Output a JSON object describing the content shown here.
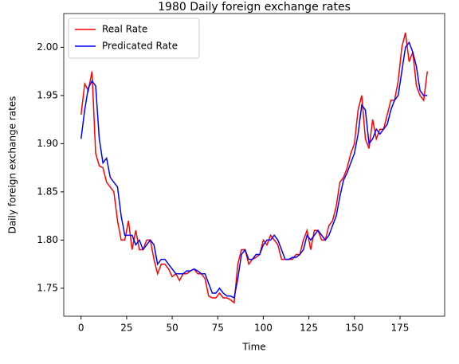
{
  "chart_data": {
    "type": "line",
    "title": "1980 Daily foreign exchange rates",
    "x_label": "Time",
    "y_label": "Daily foreign exchange rates",
    "x": [
      0,
      2,
      4,
      6,
      8,
      10,
      12,
      14,
      16,
      18,
      20,
      22,
      24,
      26,
      28,
      30,
      32,
      34,
      36,
      38,
      40,
      42,
      44,
      46,
      48,
      50,
      52,
      54,
      56,
      58,
      60,
      62,
      64,
      66,
      68,
      70,
      72,
      74,
      76,
      78,
      80,
      82,
      84,
      86,
      88,
      90,
      92,
      94,
      96,
      98,
      100,
      102,
      104,
      106,
      108,
      110,
      112,
      114,
      116,
      118,
      120,
      122,
      124,
      126,
      128,
      130,
      132,
      134,
      136,
      138,
      140,
      142,
      144,
      146,
      148,
      150,
      152,
      154,
      156,
      158,
      160,
      162,
      164,
      166,
      168,
      170,
      172,
      174,
      176,
      178,
      180,
      182,
      184,
      186,
      188,
      190
    ],
    "series": [
      {
        "name": "Real Rate",
        "color": "#ff0000",
        "values": [
          1.93,
          1.962,
          1.955,
          1.975,
          1.89,
          1.877,
          1.875,
          1.86,
          1.855,
          1.85,
          1.82,
          1.8,
          1.8,
          1.82,
          1.79,
          1.81,
          1.79,
          1.79,
          1.8,
          1.8,
          1.78,
          1.765,
          1.775,
          1.775,
          1.77,
          1.762,
          1.765,
          1.758,
          1.765,
          1.765,
          1.768,
          1.77,
          1.765,
          1.765,
          1.76,
          1.742,
          1.74,
          1.74,
          1.745,
          1.74,
          1.74,
          1.738,
          1.735,
          1.775,
          1.79,
          1.79,
          1.775,
          1.78,
          1.782,
          1.785,
          1.8,
          1.795,
          1.805,
          1.8,
          1.795,
          1.78,
          1.78,
          1.78,
          1.78,
          1.785,
          1.785,
          1.8,
          1.81,
          1.79,
          1.81,
          1.81,
          1.8,
          1.8,
          1.815,
          1.82,
          1.835,
          1.86,
          1.865,
          1.875,
          1.89,
          1.9,
          1.935,
          1.95,
          1.905,
          1.895,
          1.925,
          1.905,
          1.915,
          1.915,
          1.93,
          1.945,
          1.945,
          1.965,
          2.0,
          2.015,
          1.985,
          1.995,
          1.96,
          1.95,
          1.945,
          1.975
        ]
      },
      {
        "name": "Predicated Rate",
        "color": "#0000ff",
        "values": [
          1.905,
          1.935,
          1.958,
          1.965,
          1.96,
          1.905,
          1.88,
          1.885,
          1.865,
          1.86,
          1.855,
          1.825,
          1.805,
          1.805,
          1.805,
          1.795,
          1.8,
          1.79,
          1.795,
          1.8,
          1.795,
          1.775,
          1.78,
          1.78,
          1.775,
          1.77,
          1.765,
          1.765,
          1.765,
          1.768,
          1.768,
          1.77,
          1.768,
          1.765,
          1.765,
          1.755,
          1.745,
          1.745,
          1.75,
          1.745,
          1.742,
          1.742,
          1.74,
          1.76,
          1.785,
          1.79,
          1.78,
          1.78,
          1.785,
          1.785,
          1.795,
          1.8,
          1.8,
          1.805,
          1.8,
          1.79,
          1.78,
          1.78,
          1.782,
          1.782,
          1.785,
          1.79,
          1.805,
          1.8,
          1.805,
          1.81,
          1.805,
          1.8,
          1.805,
          1.815,
          1.825,
          1.845,
          1.862,
          1.87,
          1.88,
          1.89,
          1.91,
          1.94,
          1.935,
          1.9,
          1.905,
          1.915,
          1.91,
          1.915,
          1.92,
          1.935,
          1.945,
          1.95,
          1.975,
          2.0,
          2.005,
          1.995,
          1.98,
          1.955,
          1.95,
          1.95
        ]
      }
    ],
    "xlim": [
      -9.5,
      199.5
    ],
    "xticks": [
      0,
      25,
      50,
      75,
      100,
      125,
      150,
      175
    ],
    "ylim": [
      1.721,
      2.035
    ],
    "yticks": [
      1.75,
      {
        "value": 1.8,
        "label": "1.80"
      },
      1.85,
      {
        "value": 1.9,
        "label": "1.90"
      },
      1.95,
      {
        "value": 2.0,
        "label": "2.00"
      }
    ],
    "legend": "upper left"
  }
}
